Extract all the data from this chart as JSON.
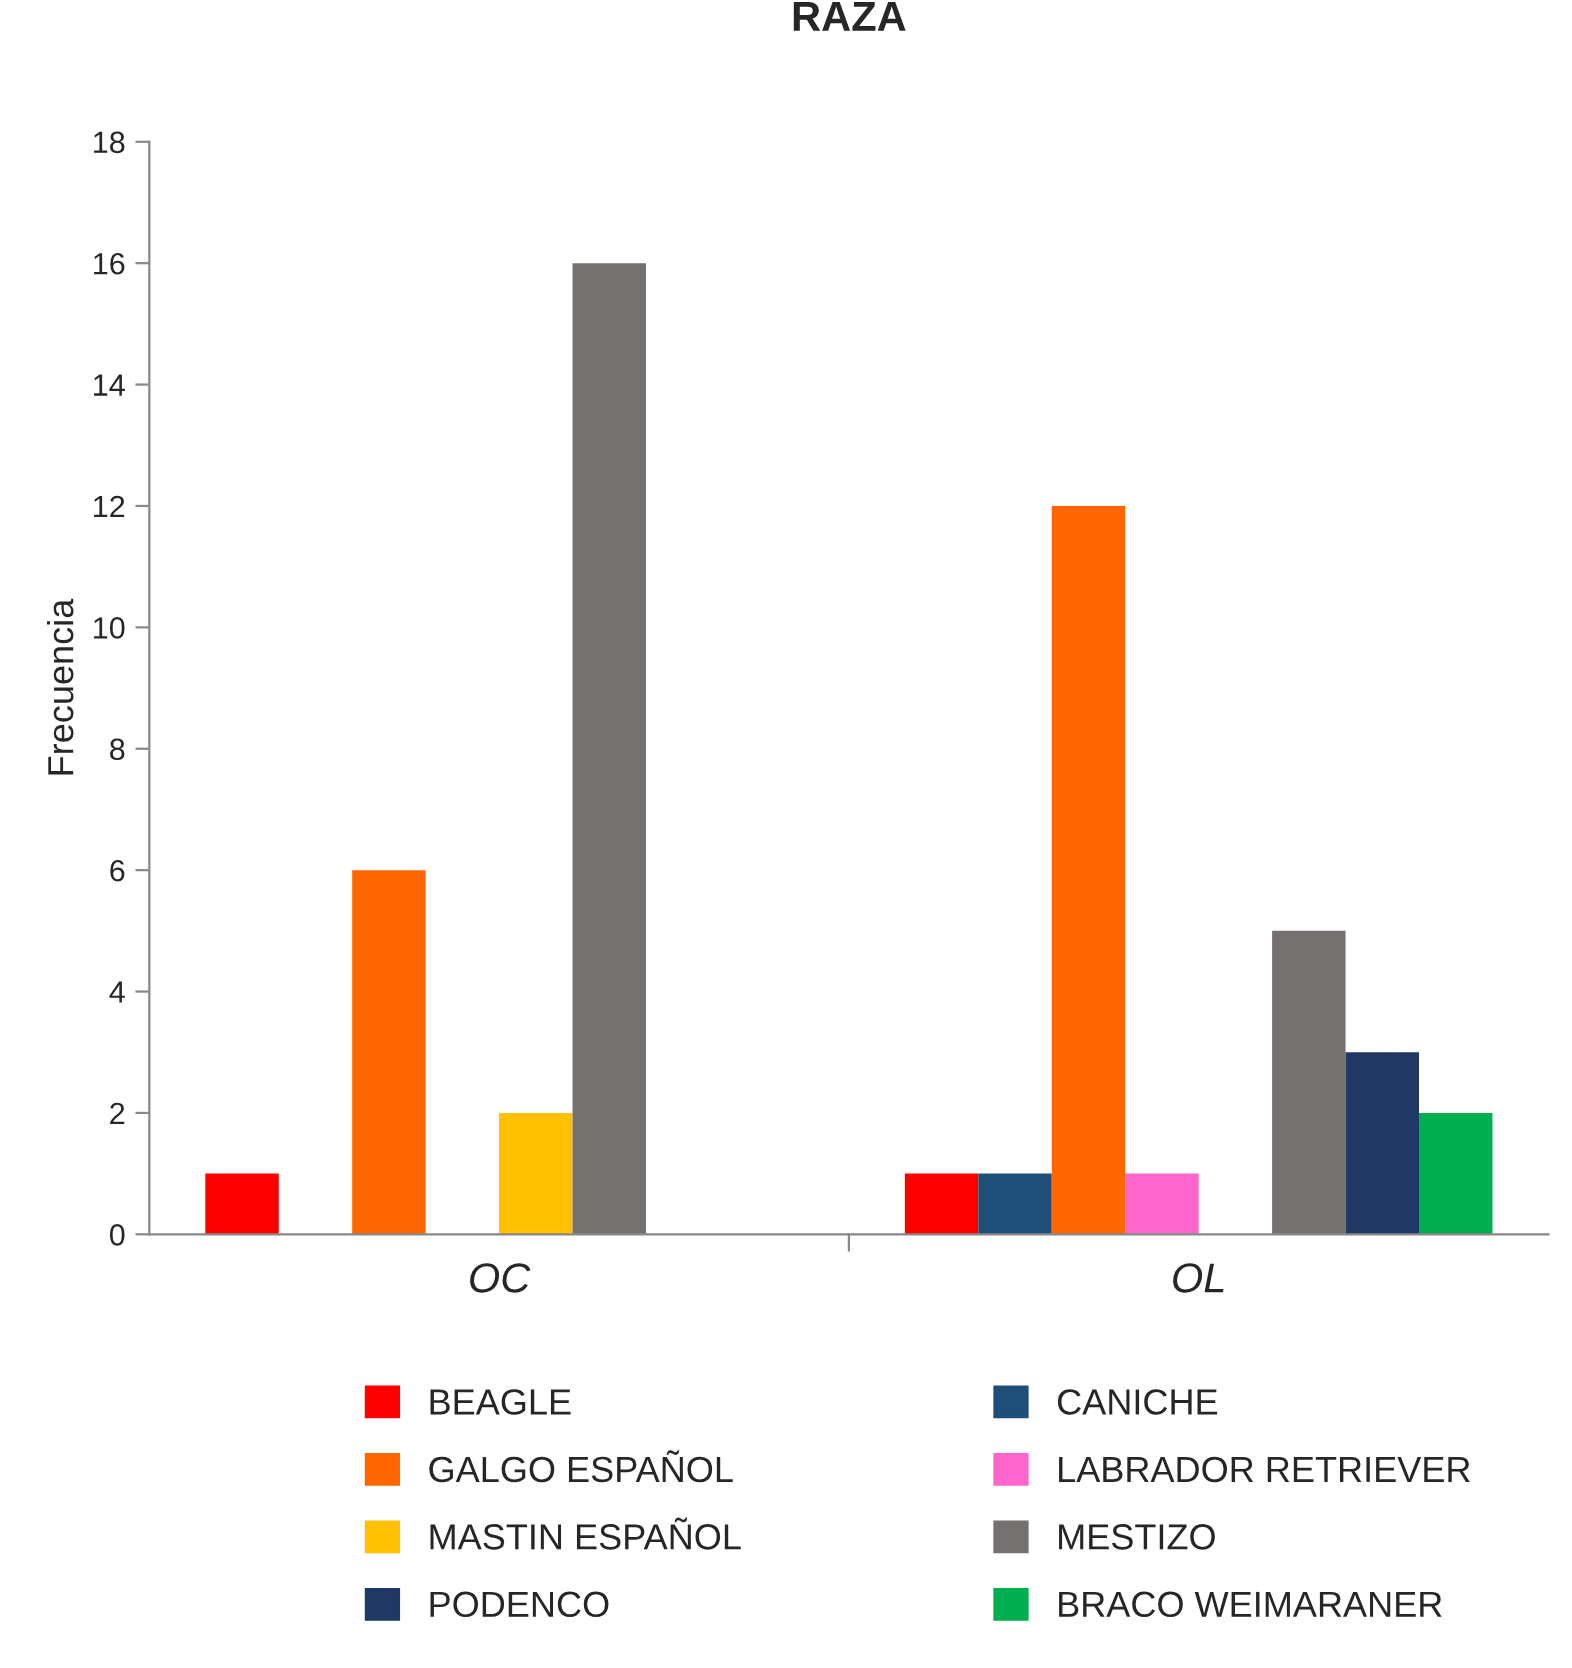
{
  "chart_data": {
    "type": "bar",
    "title": "RAZA",
    "ylabel": "Frecuencia",
    "categories": [
      "OC",
      "OL"
    ],
    "series": [
      {
        "name": "BEAGLE",
        "color": "#ff0000",
        "values": [
          1,
          1
        ]
      },
      {
        "name": "CANICHE",
        "color": "#1f4e79",
        "values": [
          0,
          1
        ]
      },
      {
        "name": "GALGO ESPAÑOL",
        "color": "#ff6600",
        "values": [
          6,
          12
        ]
      },
      {
        "name": "LABRADOR RETRIEVER",
        "color": "#ff66cc",
        "values": [
          0,
          1
        ]
      },
      {
        "name": "MASTIN ESPAÑOL",
        "color": "#ffc000",
        "values": [
          2,
          0
        ]
      },
      {
        "name": "MESTIZO",
        "color": "#767171",
        "values": [
          16,
          5
        ]
      },
      {
        "name": "PODENCO",
        "color": "#203864",
        "values": [
          0,
          3
        ]
      },
      {
        "name": "BRACO WEIMARANER",
        "color": "#00b050",
        "values": [
          0,
          2
        ]
      }
    ],
    "ylim": [
      0,
      18
    ],
    "yticks": [
      0,
      2,
      4,
      6,
      8,
      10,
      12,
      14,
      16,
      18
    ],
    "grid": false,
    "legend": "bottom"
  }
}
